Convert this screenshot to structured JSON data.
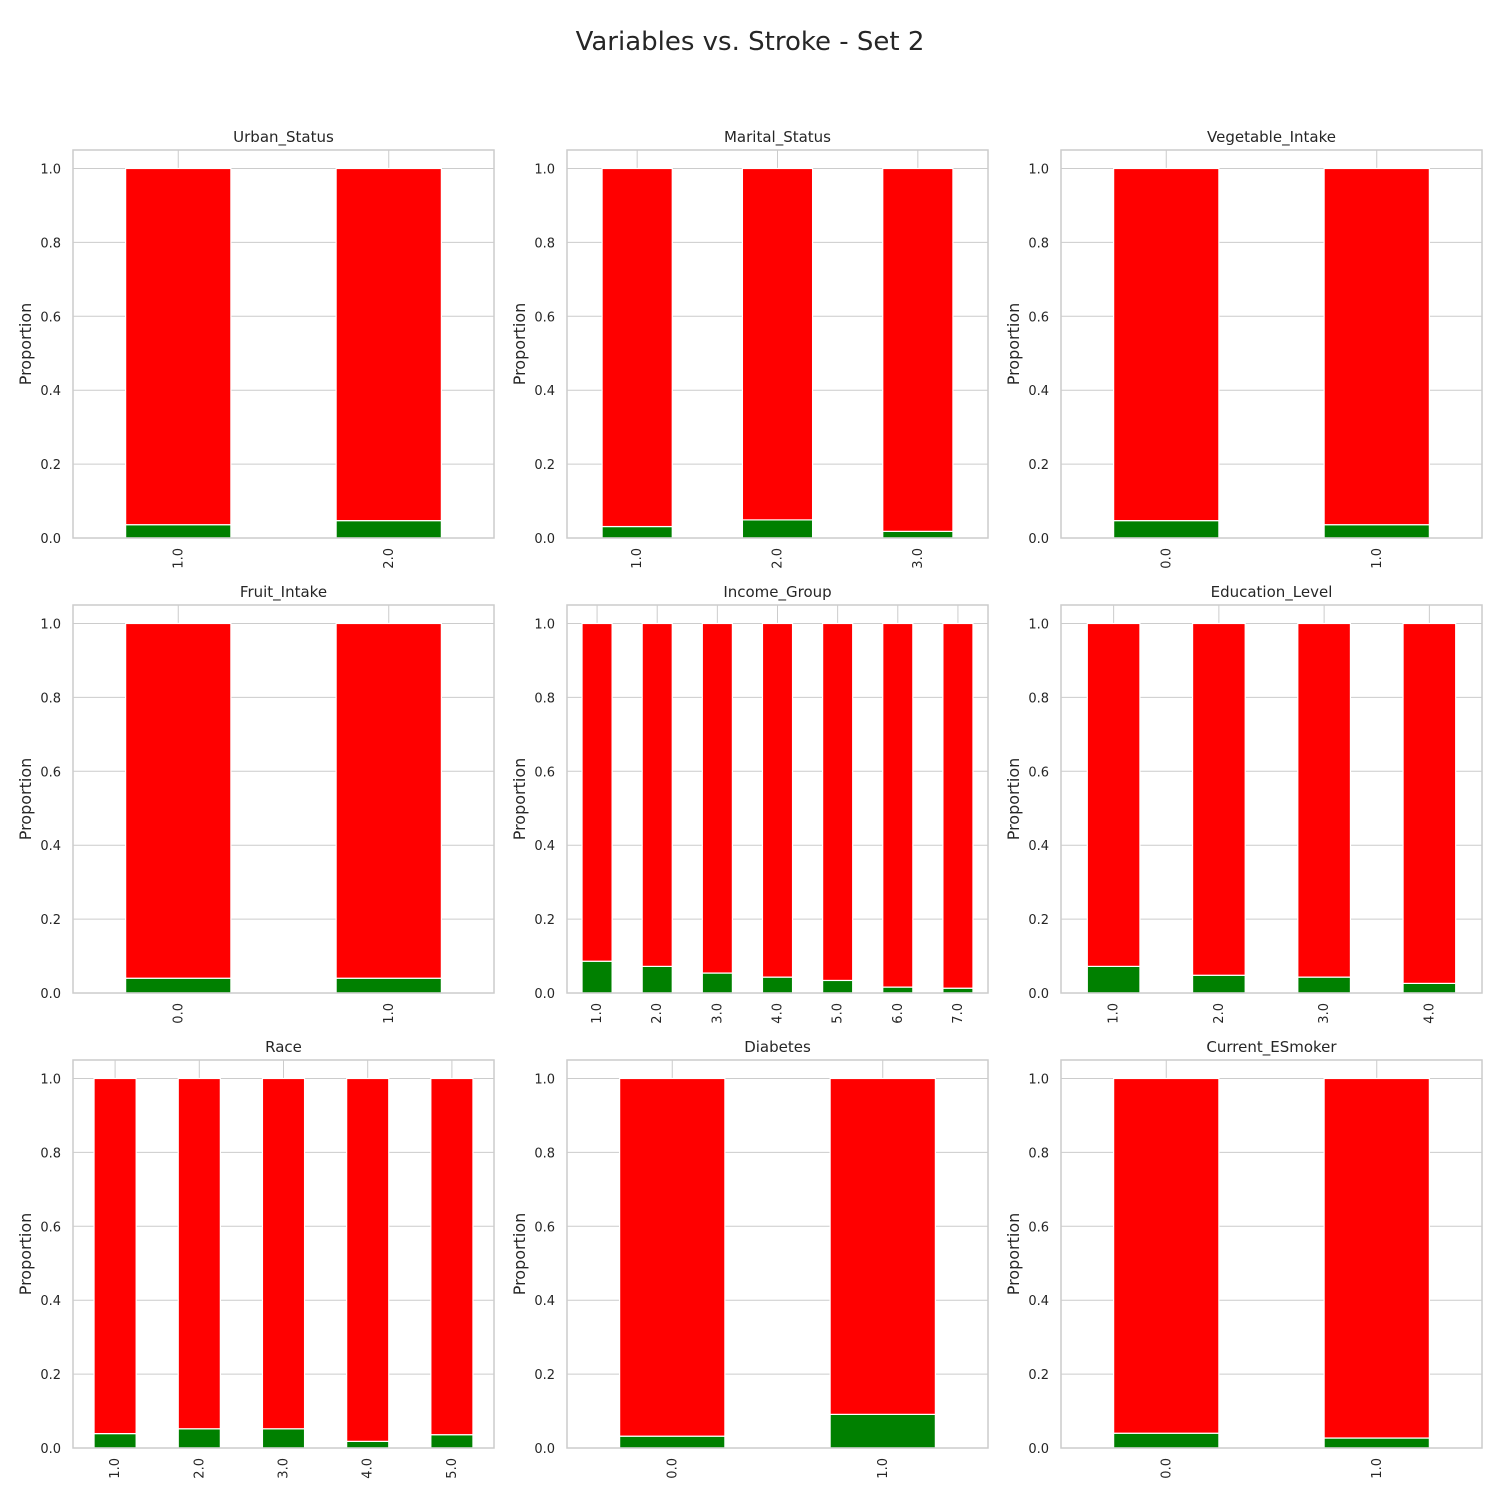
{
  "figure": {
    "title": "Variables vs. Stroke - Set 2"
  },
  "colors": {
    "negative": "#ff0000",
    "positive": "#008000",
    "grid": "#cccccc",
    "spine": "#cccccc",
    "bar_edge": "#ffffff"
  },
  "chart_data": [
    {
      "type": "bar",
      "stacked": true,
      "title": "Urban_Status",
      "ylabel": "Proportion",
      "ylim": [
        0,
        1.05
      ],
      "yticks": [
        "0.0",
        "0.2",
        "0.4",
        "0.6",
        "0.8",
        "1.0"
      ],
      "grid": true,
      "categories": [
        "1.0",
        "2.0"
      ],
      "series": [
        {
          "values": [
            0.036,
            0.047
          ]
        },
        {
          "values": [
            0.964,
            0.953
          ]
        }
      ]
    },
    {
      "type": "bar",
      "stacked": true,
      "title": "Marital_Status",
      "ylabel": "Proportion",
      "ylim": [
        0,
        1.05
      ],
      "yticks": [
        "0.0",
        "0.2",
        "0.4",
        "0.6",
        "0.8",
        "1.0"
      ],
      "grid": true,
      "categories": [
        "1.0",
        "2.0",
        "3.0"
      ],
      "series": [
        {
          "values": [
            0.031,
            0.049,
            0.018
          ]
        },
        {
          "values": [
            0.969,
            0.951,
            0.982
          ]
        }
      ]
    },
    {
      "type": "bar",
      "stacked": true,
      "title": "Vegetable_Intake",
      "ylabel": "Proportion",
      "ylim": [
        0,
        1.05
      ],
      "yticks": [
        "0.0",
        "0.2",
        "0.4",
        "0.6",
        "0.8",
        "1.0"
      ],
      "grid": true,
      "categories": [
        "0.0",
        "1.0"
      ],
      "series": [
        {
          "values": [
            0.047,
            0.036
          ]
        },
        {
          "values": [
            0.953,
            0.964
          ]
        }
      ]
    },
    {
      "type": "bar",
      "stacked": true,
      "title": "Fruit_Intake",
      "ylabel": "Proportion",
      "ylim": [
        0,
        1.05
      ],
      "yticks": [
        "0.0",
        "0.2",
        "0.4",
        "0.6",
        "0.8",
        "1.0"
      ],
      "grid": true,
      "categories": [
        "0.0",
        "1.0"
      ],
      "series": [
        {
          "values": [
            0.04,
            0.04
          ]
        },
        {
          "values": [
            0.96,
            0.96
          ]
        }
      ]
    },
    {
      "type": "bar",
      "stacked": true,
      "title": "Income_Group",
      "ylabel": "Proportion",
      "ylim": [
        0,
        1.05
      ],
      "yticks": [
        "0.0",
        "0.2",
        "0.4",
        "0.6",
        "0.8",
        "1.0"
      ],
      "grid": true,
      "categories": [
        "1.0",
        "2.0",
        "3.0",
        "4.0",
        "5.0",
        "6.0",
        "7.0"
      ],
      "series": [
        {
          "values": [
            0.086,
            0.072,
            0.054,
            0.043,
            0.034,
            0.016,
            0.013
          ]
        },
        {
          "values": [
            0.914,
            0.928,
            0.946,
            0.957,
            0.966,
            0.984,
            0.987
          ]
        }
      ]
    },
    {
      "type": "bar",
      "stacked": true,
      "title": "Education_Level",
      "ylabel": "Proportion",
      "ylim": [
        0,
        1.05
      ],
      "yticks": [
        "0.0",
        "0.2",
        "0.4",
        "0.6",
        "0.8",
        "1.0"
      ],
      "grid": true,
      "categories": [
        "1.0",
        "2.0",
        "3.0",
        "4.0"
      ],
      "series": [
        {
          "values": [
            0.072,
            0.048,
            0.043,
            0.026
          ]
        },
        {
          "values": [
            0.928,
            0.952,
            0.957,
            0.974
          ]
        }
      ]
    },
    {
      "type": "bar",
      "stacked": true,
      "title": "Race",
      "ylabel": "Proportion",
      "ylim": [
        0,
        1.05
      ],
      "yticks": [
        "0.0",
        "0.2",
        "0.4",
        "0.6",
        "0.8",
        "1.0"
      ],
      "grid": true,
      "categories": [
        "1.0",
        "2.0",
        "3.0",
        "4.0",
        "5.0"
      ],
      "series": [
        {
          "values": [
            0.039,
            0.052,
            0.052,
            0.018,
            0.036
          ]
        },
        {
          "values": [
            0.961,
            0.948,
            0.948,
            0.982,
            0.964
          ]
        }
      ]
    },
    {
      "type": "bar",
      "stacked": true,
      "title": "Diabetes",
      "ylabel": "Proportion",
      "ylim": [
        0,
        1.05
      ],
      "yticks": [
        "0.0",
        "0.2",
        "0.4",
        "0.6",
        "0.8",
        "1.0"
      ],
      "grid": true,
      "categories": [
        "0.0",
        "1.0"
      ],
      "series": [
        {
          "values": [
            0.032,
            0.091
          ]
        },
        {
          "values": [
            0.968,
            0.909
          ]
        }
      ]
    },
    {
      "type": "bar",
      "stacked": true,
      "title": "Current_ESmoker",
      "ylabel": "Proportion",
      "ylim": [
        0,
        1.05
      ],
      "yticks": [
        "0.0",
        "0.2",
        "0.4",
        "0.6",
        "0.8",
        "1.0"
      ],
      "grid": true,
      "categories": [
        "0.0",
        "1.0"
      ],
      "series": [
        {
          "values": [
            0.04,
            0.027
          ]
        },
        {
          "values": [
            0.96,
            0.973
          ]
        }
      ]
    }
  ]
}
